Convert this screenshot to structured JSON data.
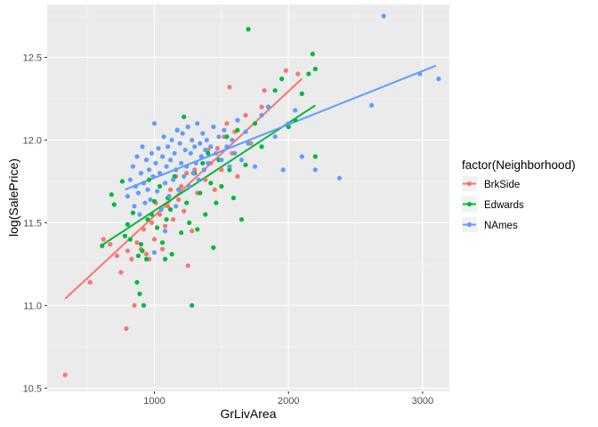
{
  "chart_data": {
    "type": "scatter",
    "xlabel": "GrLivArea",
    "ylabel": "log(SalePrice)",
    "xlim": [
      200,
      3200
    ],
    "ylim": [
      10.48,
      12.82
    ],
    "x_ticks": [
      1000,
      2000,
      3000
    ],
    "y_ticks": [
      10.5,
      11.0,
      11.5,
      12.0,
      12.5
    ],
    "x_tick_labels": [
      "1000",
      "2000",
      "3000"
    ],
    "y_tick_labels": [
      "10.5",
      "11.0",
      "11.5",
      "12.0",
      "12.5"
    ],
    "grid": true,
    "legend": {
      "title": "factor(Neighborhood)",
      "placement": "right"
    },
    "series": [
      {
        "name": "BrkSide",
        "color": "#F8766D",
        "fit_line": [
          [
            334,
            11.04
          ],
          [
            2100,
            12.37
          ]
        ],
        "points": [
          [
            334,
            10.58
          ],
          [
            520,
            11.14
          ],
          [
            620,
            11.4
          ],
          [
            670,
            11.37
          ],
          [
            720,
            11.3
          ],
          [
            750,
            11.2
          ],
          [
            790,
            10.86
          ],
          [
            800,
            11.33
          ],
          [
            830,
            11.28
          ],
          [
            850,
            11.0
          ],
          [
            870,
            11.38
          ],
          [
            900,
            11.34
          ],
          [
            920,
            11.46
          ],
          [
            940,
            11.31
          ],
          [
            960,
            11.28
          ],
          [
            980,
            11.5
          ],
          [
            1000,
            11.4
          ],
          [
            1010,
            11.62
          ],
          [
            1040,
            11.55
          ],
          [
            1060,
            11.34
          ],
          [
            1080,
            11.48
          ],
          [
            1100,
            11.6
          ],
          [
            1120,
            11.7
          ],
          [
            1140,
            11.52
          ],
          [
            1160,
            11.78
          ],
          [
            1180,
            11.64
          ],
          [
            1200,
            11.72
          ],
          [
            1220,
            11.57
          ],
          [
            1240,
            11.8
          ],
          [
            1250,
            11.24
          ],
          [
            1280,
            11.45
          ],
          [
            1300,
            11.82
          ],
          [
            1320,
            11.68
          ],
          [
            1350,
            11.9
          ],
          [
            1380,
            11.76
          ],
          [
            1400,
            11.94
          ],
          [
            1420,
            11.86
          ],
          [
            1450,
            11.7
          ],
          [
            1470,
            11.95
          ],
          [
            1500,
            11.82
          ],
          [
            1520,
            12.02
          ],
          [
            1540,
            12.1
          ],
          [
            1560,
            12.32
          ],
          [
            1580,
            11.92
          ],
          [
            1600,
            12.05
          ],
          [
            1620,
            11.78
          ],
          [
            1680,
            12.15
          ],
          [
            1720,
            11.98
          ],
          [
            1800,
            12.2
          ],
          [
            1820,
            12.3
          ],
          [
            1980,
            12.42
          ],
          [
            2070,
            12.4
          ]
        ]
      },
      {
        "name": "Edwards",
        "color": "#00BA38",
        "fit_line": [
          [
            600,
            11.36
          ],
          [
            2200,
            12.21
          ]
        ],
        "points": [
          [
            610,
            11.36
          ],
          [
            680,
            11.67
          ],
          [
            700,
            11.61
          ],
          [
            760,
            11.75
          ],
          [
            780,
            11.42
          ],
          [
            800,
            11.49
          ],
          [
            820,
            11.4
          ],
          [
            840,
            11.56
          ],
          [
            870,
            11.14
          ],
          [
            880,
            11.3
          ],
          [
            890,
            11.07
          ],
          [
            900,
            11.37
          ],
          [
            910,
            11.33
          ],
          [
            920,
            11.0
          ],
          [
            940,
            11.28
          ],
          [
            950,
            11.52
          ],
          [
            960,
            11.76
          ],
          [
            980,
            11.55
          ],
          [
            1000,
            11.63
          ],
          [
            1020,
            11.47
          ],
          [
            1040,
            11.72
          ],
          [
            1060,
            11.38
          ],
          [
            1080,
            11.28
          ],
          [
            1090,
            11.52
          ],
          [
            1100,
            11.65
          ],
          [
            1120,
            11.58
          ],
          [
            1130,
            11.31
          ],
          [
            1150,
            11.78
          ],
          [
            1170,
            12.06
          ],
          [
            1180,
            11.7
          ],
          [
            1200,
            11.44
          ],
          [
            1220,
            12.14
          ],
          [
            1240,
            11.62
          ],
          [
            1260,
            11.5
          ],
          [
            1280,
            11.0
          ],
          [
            1300,
            11.8
          ],
          [
            1320,
            11.46
          ],
          [
            1340,
            11.68
          ],
          [
            1360,
            11.86
          ],
          [
            1380,
            11.55
          ],
          [
            1400,
            11.92
          ],
          [
            1420,
            11.74
          ],
          [
            1440,
            11.35
          ],
          [
            1460,
            11.62
          ],
          [
            1480,
            11.88
          ],
          [
            1500,
            11.72
          ],
          [
            1540,
            12.02
          ],
          [
            1560,
            11.82
          ],
          [
            1590,
            11.65
          ],
          [
            1620,
            12.06
          ],
          [
            1650,
            11.52
          ],
          [
            1680,
            11.85
          ],
          [
            1700,
            12.67
          ],
          [
            1750,
            12.1
          ],
          [
            1800,
            11.96
          ],
          [
            1850,
            12.2
          ],
          [
            1900,
            12.3
          ],
          [
            1950,
            12.37
          ],
          [
            2000,
            12.08
          ],
          [
            2050,
            12.12
          ],
          [
            2100,
            12.28
          ],
          [
            2150,
            12.4
          ],
          [
            2180,
            12.52
          ],
          [
            2200,
            12.43
          ],
          [
            2200,
            11.9
          ]
        ]
      },
      {
        "name": "NAmes",
        "color": "#619CFF",
        "fit_line": [
          [
            780,
            11.7
          ],
          [
            3100,
            12.45
          ]
        ],
        "points": [
          [
            800,
            11.66
          ],
          [
            820,
            11.76
          ],
          [
            840,
            11.84
          ],
          [
            850,
            11.6
          ],
          [
            860,
            11.72
          ],
          [
            870,
            11.9
          ],
          [
            880,
            11.68
          ],
          [
            890,
            11.55
          ],
          [
            900,
            11.8
          ],
          [
            910,
            11.96
          ],
          [
            920,
            11.74
          ],
          [
            930,
            11.62
          ],
          [
            940,
            11.88
          ],
          [
            950,
            11.7
          ],
          [
            960,
            11.82
          ],
          [
            970,
            11.64
          ],
          [
            980,
            11.92
          ],
          [
            990,
            11.78
          ],
          [
            1000,
            12.1
          ],
          [
            1010,
            11.86
          ],
          [
            1020,
            11.69
          ],
          [
            1030,
            11.95
          ],
          [
            1040,
            11.8
          ],
          [
            1050,
            11.58
          ],
          [
            1060,
            11.9
          ],
          [
            1070,
            12.02
          ],
          [
            1080,
            11.74
          ],
          [
            1090,
            11.84
          ],
          [
            1100,
            11.96
          ],
          [
            1110,
            11.66
          ],
          [
            1120,
            11.88
          ],
          [
            1130,
            12.0
          ],
          [
            1140,
            11.76
          ],
          [
            1150,
            11.92
          ],
          [
            1160,
            11.82
          ],
          [
            1170,
            12.06
          ],
          [
            1180,
            11.7
          ],
          [
            1190,
            11.98
          ],
          [
            1200,
            11.86
          ],
          [
            1210,
            12.04
          ],
          [
            1220,
            11.78
          ],
          [
            1230,
            11.94
          ],
          [
            1240,
            11.84
          ],
          [
            1250,
            12.08
          ],
          [
            1260,
            11.72
          ],
          [
            1270,
            11.92
          ],
          [
            1280,
            12.0
          ],
          [
            1290,
            11.8
          ],
          [
            1300,
            11.96
          ],
          [
            1310,
            11.86
          ],
          [
            1320,
            12.1
          ],
          [
            1330,
            11.76
          ],
          [
            1340,
            11.98
          ],
          [
            1350,
            11.9
          ],
          [
            1360,
            12.04
          ],
          [
            1370,
            11.82
          ],
          [
            1380,
            11.94
          ],
          [
            1390,
            12.0
          ],
          [
            1400,
            11.86
          ],
          [
            1420,
            11.96
          ],
          [
            1440,
            12.08
          ],
          [
            1460,
            11.92
          ],
          [
            1480,
            12.02
          ],
          [
            1500,
            11.88
          ],
          [
            1520,
            12.06
          ],
          [
            1540,
            11.96
          ],
          [
            1560,
            11.84
          ],
          [
            1580,
            12.0
          ],
          [
            1600,
            11.92
          ],
          [
            1620,
            12.12
          ],
          [
            1650,
            11.88
          ],
          [
            1680,
            12.05
          ],
          [
            1700,
            11.98
          ],
          [
            1750,
            11.84
          ],
          [
            1800,
            12.15
          ],
          [
            1850,
            12.2
          ],
          [
            1900,
            12.02
          ],
          [
            1960,
            11.82
          ],
          [
            2000,
            12.1
          ],
          [
            2050,
            12.18
          ],
          [
            2100,
            11.9
          ],
          [
            2200,
            11.82
          ],
          [
            2380,
            11.77
          ],
          [
            2620,
            12.21
          ],
          [
            2710,
            12.75
          ],
          [
            2980,
            12.4
          ],
          [
            3120,
            12.37
          ],
          [
            1000,
            11.32
          ],
          [
            1080,
            11.45
          ],
          [
            1160,
            11.6
          ]
        ]
      }
    ]
  }
}
